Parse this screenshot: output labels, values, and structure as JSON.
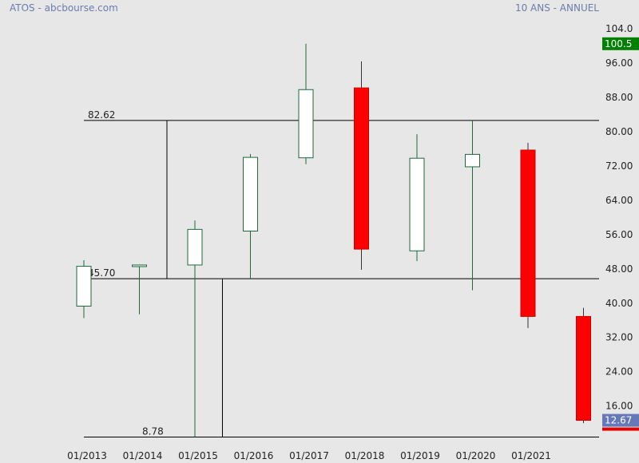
{
  "header": {
    "left": "ATOS - abcbourse.com",
    "right": "10 ANS - ANNUEL"
  },
  "chart_data": {
    "type": "candlestick",
    "y_ticks": [
      "104.0",
      "96.00",
      "88.00",
      "80.00",
      "72.00",
      "64.00",
      "56.00",
      "48.00",
      "40.00",
      "32.00",
      "24.00",
      "16.00"
    ],
    "ylim": [
      7,
      104
    ],
    "categories": [
      "01/2013",
      "01/2014",
      "01/2015",
      "01/2016",
      "01/2017",
      "01/2018",
      "01/2019",
      "01/2020",
      "01/2021",
      ""
    ],
    "candles": [
      {
        "date": "01/2013",
        "open": 39.3,
        "high": 50.0,
        "low": 36.5,
        "close": 48.6
      },
      {
        "date": "01/2014",
        "open": 48.6,
        "high": 49.0,
        "low": 37.4,
        "close": 48.9
      },
      {
        "date": "01/2015",
        "open": 48.9,
        "high": 59.3,
        "low": 8.78,
        "close": 57.2
      },
      {
        "date": "01/2016",
        "open": 56.8,
        "high": 74.8,
        "low": 45.7,
        "close": 74.0
      },
      {
        "date": "01/2017",
        "open": 73.9,
        "high": 100.5,
        "low": 72.4,
        "close": 89.8
      },
      {
        "date": "01/2018",
        "open": 90.2,
        "high": 96.4,
        "low": 47.8,
        "close": 52.6
      },
      {
        "date": "01/2019",
        "open": 52.2,
        "high": 79.4,
        "low": 49.8,
        "close": 73.8
      },
      {
        "date": "01/2020",
        "open": 71.8,
        "high": 82.62,
        "low": 43.0,
        "close": 74.7
      },
      {
        "date": "01/2021",
        "open": 75.7,
        "high": 77.4,
        "low": 34.2,
        "close": 36.9
      },
      {
        "date": "",
        "open": 36.9,
        "high": 38.9,
        "low": 12.0,
        "close": 12.67
      }
    ],
    "h_lines": [
      {
        "value": 82.62,
        "label": "82.62"
      },
      {
        "value": 45.7,
        "label": "45.70"
      },
      {
        "value": 8.78,
        "label": "8.78"
      }
    ],
    "v_lines": [
      {
        "candle": 1,
        "from": 82.62,
        "to": 45.7
      },
      {
        "candle": 2,
        "from": 45.7,
        "to": 8.78
      }
    ],
    "price_tags": [
      {
        "value": 100.5,
        "label": "100.5",
        "color": "#008000"
      },
      {
        "value": 12.67,
        "label": "12.67",
        "color": "#6578b8"
      }
    ],
    "colors": {
      "up_fill": "#ffffff",
      "up_stroke": "#1e6a3e",
      "down_fill": "#ff0000",
      "down_stroke": "#cc0000",
      "last_bar": "#e00000"
    }
  }
}
